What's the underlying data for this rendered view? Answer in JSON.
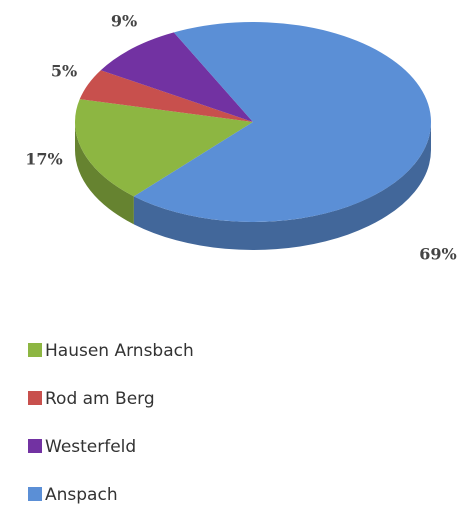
{
  "chart_data": {
    "type": "pie",
    "categories": [
      "Hausen Arnsbach",
      "Rod am Berg",
      "Westerfeld",
      "Anspach"
    ],
    "values": [
      17,
      5,
      9,
      69
    ],
    "value_labels": [
      "17%",
      "5%",
      "9%",
      "69%"
    ],
    "colors": [
      "#8db642",
      "#c8504d",
      "#7232a2",
      "#5b8fd6"
    ],
    "legend": "bottom"
  }
}
